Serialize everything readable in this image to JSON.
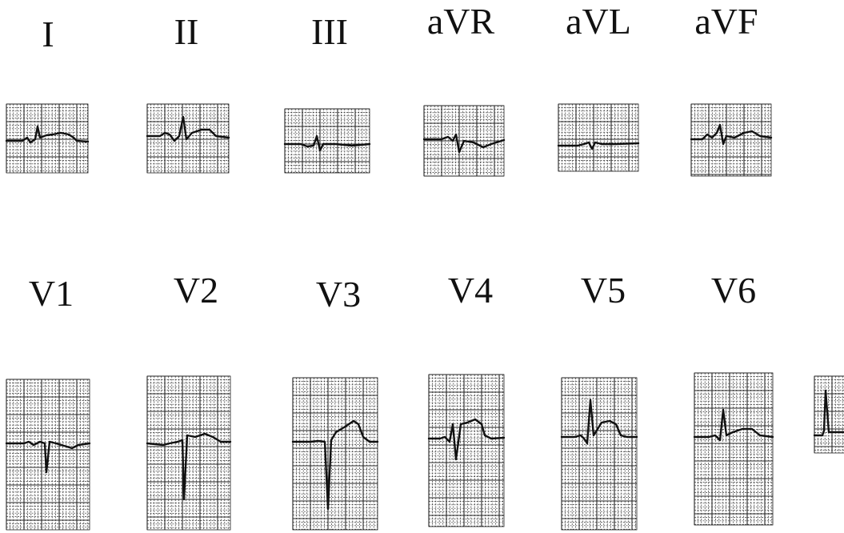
{
  "leads": [
    {
      "id": "I",
      "label": "I"
    },
    {
      "id": "II",
      "label": "II"
    },
    {
      "id": "III",
      "label": "III"
    },
    {
      "id": "aVR",
      "label": "aVR"
    },
    {
      "id": "aVL",
      "label": "aVL"
    },
    {
      "id": "aVF",
      "label": "aVF"
    },
    {
      "id": "V1",
      "label": "V1"
    },
    {
      "id": "V2",
      "label": "V2"
    },
    {
      "id": "V3",
      "label": "V3"
    },
    {
      "id": "V4",
      "label": "V4"
    },
    {
      "id": "V5",
      "label": "V5"
    },
    {
      "id": "V6",
      "label": "V6"
    }
  ],
  "colors": {
    "ink": "#111111",
    "grid": "#333333",
    "paper": "#ffffff"
  }
}
